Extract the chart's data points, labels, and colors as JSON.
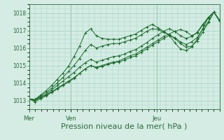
{
  "background_color": "#d4ece4",
  "grid_color": "#a8d4c4",
  "line_color": "#1a6b2a",
  "marker_color": "#1a6b2a",
  "xlabel": "Pression niveau de la mer( hPa )",
  "xlabel_fontsize": 8,
  "ylabel_ticks": [
    1013,
    1014,
    1015,
    1016,
    1017,
    1018
  ],
  "ylim": [
    1012.5,
    1018.5
  ],
  "tick_color": "#2d6b3a",
  "day_labels": [
    "Mer",
    "Ven",
    "Jeu"
  ],
  "day_positions": [
    0.0,
    0.22,
    0.67
  ],
  "total_points": 35,
  "series": [
    [
      1013.1,
      1013.0,
      1013.15,
      1013.3,
      1013.5,
      1013.7,
      1013.9,
      1014.1,
      1014.3,
      1014.55,
      1014.8,
      1015.0,
      1014.9,
      1015.0,
      1015.1,
      1015.2,
      1015.25,
      1015.4,
      1015.55,
      1015.65,
      1015.85,
      1016.05,
      1016.25,
      1016.45,
      1016.65,
      1016.8,
      1016.95,
      1017.05,
      1016.95,
      1016.7,
      1016.85,
      1017.3,
      1017.7,
      1018.05,
      1017.55
    ],
    [
      1013.1,
      1013.0,
      1013.2,
      1013.35,
      1013.6,
      1013.85,
      1014.1,
      1014.35,
      1014.6,
      1014.9,
      1015.15,
      1015.35,
      1015.2,
      1015.3,
      1015.4,
      1015.5,
      1015.55,
      1015.65,
      1015.8,
      1015.9,
      1016.1,
      1016.3,
      1016.55,
      1016.75,
      1016.95,
      1017.1,
      1016.95,
      1016.7,
      1016.55,
      1016.65,
      1016.9,
      1017.35,
      1017.75,
      1018.05,
      1017.55
    ],
    [
      1013.1,
      1012.92,
      1013.1,
      1013.25,
      1013.45,
      1013.65,
      1013.85,
      1014.05,
      1014.25,
      1014.55,
      1014.8,
      1015.0,
      1014.85,
      1014.95,
      1015.05,
      1015.15,
      1015.2,
      1015.3,
      1015.45,
      1015.55,
      1015.75,
      1015.95,
      1016.15,
      1016.35,
      1016.55,
      1016.7,
      1016.6,
      1016.35,
      1016.2,
      1016.35,
      1016.6,
      1017.05,
      1017.5,
      1018.05,
      1017.6
    ],
    [
      1013.1,
      1013.05,
      1013.25,
      1013.45,
      1013.7,
      1014.0,
      1014.3,
      1014.65,
      1015.0,
      1015.4,
      1015.85,
      1016.2,
      1016.0,
      1016.1,
      1016.2,
      1016.25,
      1016.25,
      1016.35,
      1016.45,
      1016.55,
      1016.75,
      1016.95,
      1017.1,
      1017.05,
      1016.9,
      1016.75,
      1016.55,
      1016.25,
      1016.05,
      1016.1,
      1016.4,
      1016.9,
      1017.45,
      1018.05,
      1017.55
    ],
    [
      1013.1,
      1013.05,
      1013.3,
      1013.55,
      1013.85,
      1014.2,
      1014.55,
      1014.95,
      1015.5,
      1016.1,
      1016.85,
      1017.1,
      1016.7,
      1016.55,
      1016.5,
      1016.5,
      1016.5,
      1016.6,
      1016.7,
      1016.8,
      1017.0,
      1017.2,
      1017.35,
      1017.15,
      1016.95,
      1016.75,
      1016.3,
      1015.95,
      1015.85,
      1016.05,
      1016.5,
      1017.1,
      1017.75,
      1018.05,
      1017.55
    ]
  ]
}
